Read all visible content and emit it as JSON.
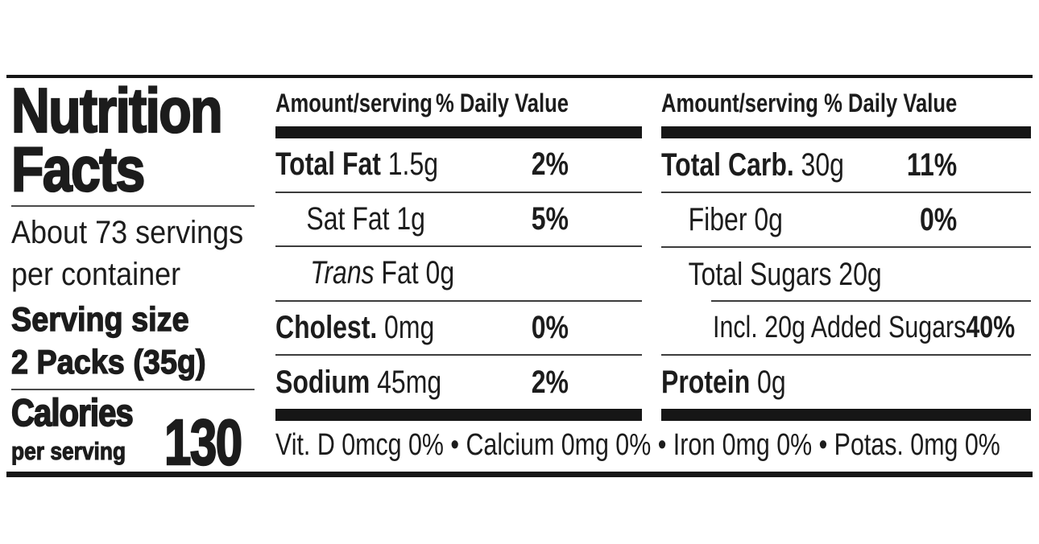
{
  "label": {
    "colors": {
      "ink": "#1c1c1c",
      "background": "#ffffff",
      "divider": "#3c3c3c"
    },
    "left": {
      "title_line1": "Nutrition",
      "title_line2": "Facts",
      "servings_line1": "About 73 servings",
      "servings_line2": "per container",
      "serving_size_label": "Serving size",
      "serving_size_value": "2 Packs (35g)",
      "calories_label": "Calories",
      "calories_sublabel": "per serving",
      "calories_value": "130"
    },
    "column_header": {
      "amount": "Amount/serving",
      "daily_value": "% Daily Value"
    },
    "mid": {
      "rows": [
        {
          "name": "Total Fat",
          "amount": "1.5g",
          "dv": "2%"
        },
        {
          "name": "Sat Fat",
          "amount": "1g",
          "dv": "5%"
        },
        {
          "name": "Trans",
          "amount": "Fat 0g",
          "dv": ""
        },
        {
          "name": "Cholest.",
          "amount": "0mg",
          "dv": "0%"
        },
        {
          "name": "Sodium",
          "amount": "45mg",
          "dv": "2%"
        }
      ]
    },
    "right": {
      "rows": [
        {
          "name": "Total Carb.",
          "amount": "30g",
          "dv": "11%"
        },
        {
          "name": "Fiber",
          "amount": "0g",
          "dv": "0%"
        },
        {
          "name": "Total Sugars",
          "amount": "20g",
          "dv": ""
        },
        {
          "name": "Incl. 20g Added Sugars",
          "amount": "",
          "dv": "40%"
        },
        {
          "name": "Protein",
          "amount": "0g",
          "dv": ""
        }
      ]
    },
    "footer": {
      "text": "Vit. D 0mcg 0% • Calcium 0mg 0% • Iron 0mg 0% • Potas. 0mg 0%"
    }
  }
}
